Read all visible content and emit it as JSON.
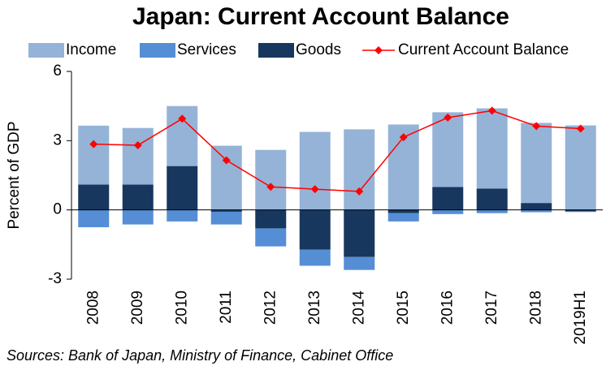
{
  "chart_data": {
    "type": "bar",
    "title": "Japan: Current Account Balance",
    "y_label": "Percent of GDP",
    "source": "Sources: Bank of Japan, Ministry of Finance, Cabinet Office",
    "categories": [
      "2008",
      "2009",
      "2010",
      "2011",
      "2012",
      "2013",
      "2014",
      "2015",
      "2016",
      "2017",
      "2018",
      "2019H1"
    ],
    "series": [
      {
        "name": "Income",
        "type": "bar",
        "color": "#95b3d7",
        "values": [
          2.55,
          2.45,
          2.6,
          2.78,
          2.6,
          3.38,
          3.49,
          3.7,
          3.24,
          3.48,
          3.47,
          3.66
        ]
      },
      {
        "name": "Services",
        "type": "bar",
        "color": "#558ed5",
        "values": [
          -0.75,
          -0.63,
          -0.5,
          -0.55,
          -0.78,
          -0.7,
          -0.56,
          -0.36,
          -0.18,
          -0.14,
          -0.1,
          -0.03
        ]
      },
      {
        "name": "Goods",
        "type": "bar",
        "color": "#17375e",
        "values": [
          1.1,
          1.1,
          1.9,
          -0.08,
          -0.8,
          -1.72,
          -2.04,
          -0.14,
          0.99,
          0.92,
          0.3,
          -0.06
        ]
      },
      {
        "name": "Current Account Balance",
        "type": "line",
        "color": "#ff0000",
        "values": [
          2.85,
          2.8,
          3.95,
          2.15,
          1.0,
          0.9,
          0.8,
          3.15,
          4.0,
          4.3,
          3.63,
          3.52
        ]
      }
    ],
    "ylim": [
      -3,
      6
    ],
    "yticks": [
      -3,
      0,
      3,
      6
    ],
    "grid": false
  }
}
